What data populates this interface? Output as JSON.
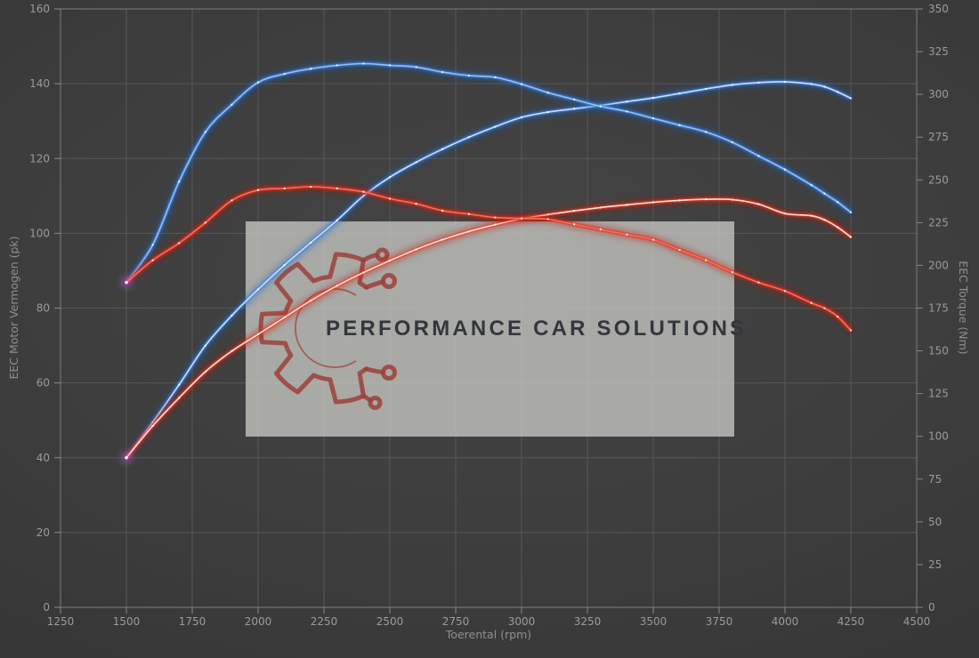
{
  "watermark": {
    "text": "PERFORMANCE CAR SOLUTIONS",
    "logo": "gear-circuit-icon",
    "logo_color": "#9c4038",
    "box_color": "#c6c6c3"
  },
  "chart_data": {
    "type": "line",
    "title": "",
    "xlabel": "Toerental (rpm)",
    "ylabel_left": "EEC Motor Vermogen (pk)",
    "ylabel_right": "EEC Torque (Nm)",
    "xlim": [
      1250,
      4500
    ],
    "ylim_left": [
      0,
      160
    ],
    "ylim_right": [
      0,
      350
    ],
    "grid": true,
    "legend": "none",
    "x_ticks": [
      1250,
      1500,
      1750,
      2000,
      2250,
      2500,
      2750,
      3000,
      3250,
      3500,
      3750,
      4000,
      4250,
      4500
    ],
    "left_ticks": [
      0,
      20,
      40,
      60,
      80,
      100,
      120,
      140,
      160
    ],
    "right_ticks": [
      0,
      25,
      50,
      75,
      100,
      125,
      150,
      175,
      200,
      225,
      250,
      275,
      300,
      325,
      350
    ],
    "rpm": [
      1500,
      1600,
      1700,
      1800,
      1900,
      2000,
      2100,
      2200,
      2300,
      2400,
      2500,
      2600,
      2700,
      2800,
      2900,
      3000,
      3100,
      3200,
      3300,
      3400,
      3500,
      3600,
      3700,
      3800,
      3900,
      4000,
      4100,
      4150,
      4200,
      4250
    ],
    "series": [
      {
        "name": "vermogen-tuned",
        "unit": "pk",
        "axis": "left",
        "color_glow": "#1e62c0",
        "color_mid": "#3b82e6",
        "color_core": "#c8dffc",
        "values": [
          40,
          49.5,
          59.5,
          70,
          78,
          85,
          91.5,
          97.5,
          103.5,
          110,
          115,
          119,
          122.5,
          125.7,
          128.5,
          131,
          132.4,
          133.3,
          134.2,
          135.2,
          136.2,
          137.4,
          138.6,
          139.7,
          140.3,
          140.5,
          139.9,
          139.2,
          137.8,
          136.1
        ]
      },
      {
        "name": "vermogen-origineel",
        "unit": "pk",
        "axis": "left",
        "color_glow": "#c01708",
        "color_mid": "#ee3526",
        "color_core": "#ffddd4",
        "values": [
          40,
          48.5,
          56,
          63,
          68.5,
          73,
          77.5,
          82,
          86,
          89.5,
          92.7,
          95.7,
          98.3,
          100.5,
          102.3,
          103.9,
          105,
          106,
          106.9,
          107.6,
          108.3,
          108.8,
          109.1,
          109,
          107.8,
          105.3,
          104.7,
          103.6,
          101.6,
          99
        ]
      },
      {
        "name": "torque-tuned",
        "unit": "Nm",
        "axis": "right",
        "color_glow": "#1e62c0",
        "color_mid": "#3b82e6",
        "color_core": "#8ec0f8",
        "values": [
          190,
          212,
          249,
          278,
          294,
          307,
          312,
          315,
          317,
          318,
          317,
          316,
          313,
          311,
          310,
          306,
          301,
          297,
          293,
          290,
          286,
          282,
          278,
          272,
          264,
          256,
          247,
          242,
          237,
          231
        ]
      },
      {
        "name": "torque-origineel",
        "unit": "Nm",
        "axis": "right",
        "color_glow": "#c01708",
        "color_mid": "#e2281a",
        "color_core": "#ff6a5c",
        "values": [
          190,
          203,
          213,
          225,
          238,
          244,
          245,
          246,
          245,
          243,
          239,
          236,
          232,
          230,
          228,
          227.5,
          227,
          224,
          221,
          218,
          215,
          209,
          203,
          196,
          190,
          185,
          178,
          175,
          170,
          162
        ]
      }
    ],
    "start_marker_color": "#cf5fe8"
  }
}
